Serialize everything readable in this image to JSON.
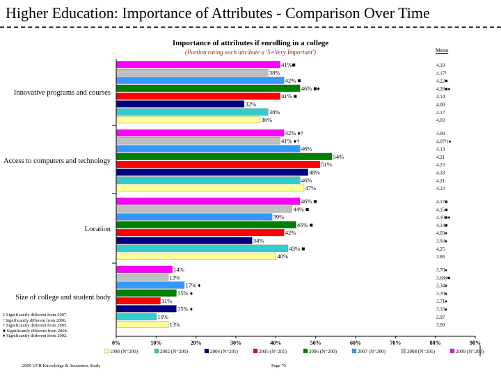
{
  "slide": {
    "title": "Higher Education:  Importance of Attributes - Comparison Over Time"
  },
  "chart": {
    "title": "Importance of attributes if enrolling in a college",
    "subtitle": "(Portion rating each attribute a '5=Very Important')",
    "mean_header": "Mean"
  },
  "footnotes": [
    "‡ Significantly different from 2007.",
    "¹ Significantly different from 2006.",
    "† Significantly different from 2005.",
    "■ Significantly different from 2004.",
    "♦ Significantly different from 2002."
  ],
  "footer": {
    "left": "2009 UCR Knowledge & Awareness Study",
    "center": "Page 70"
  },
  "chart_data": {
    "type": "bar",
    "orientation": "horizontal",
    "title": "Importance of attributes if enrolling in a college",
    "subtitle": "(Portion rating each attribute a '5=Very Important')",
    "xlim": [
      0,
      90
    ],
    "x_ticks": [
      "0%",
      "10%",
      "20%",
      "30%",
      "40%",
      "50%",
      "60%",
      "70%",
      "80%",
      "90%"
    ],
    "legend_position": "bottom",
    "series": [
      {
        "name": "2009 (N=202)",
        "color": "#ff00ff"
      },
      {
        "name": "2008 (N=201)",
        "color": "#c0c0c0"
      },
      {
        "name": "2007 (N=200)",
        "color": "#3399ff"
      },
      {
        "name": "2006 (N=200)",
        "color": "#008000"
      },
      {
        "name": "2005 (N=201)",
        "color": "#ff0000"
      },
      {
        "name": "2004 (N=201)",
        "color": "#000080"
      },
      {
        "name": "2002 (N=200)",
        "color": "#33cccc"
      },
      {
        "name": "1998 (N=200)",
        "color": "#ffff99"
      }
    ],
    "legend_order": [
      "1998 (N=200)",
      "2002 (N=200)",
      "2004 (N=201)",
      "2005 (N=201)",
      "2006 (N=200)",
      "2007 (N=200)",
      "2008 (N=201)",
      "2009 (N=202)"
    ],
    "categories": [
      {
        "name": "Innovative programs and courses",
        "values": [
          41,
          38,
          42,
          46,
          41,
          32,
          38,
          36
        ],
        "labels": [
          "41%■",
          "38%",
          "42% ■",
          "46% ■♦",
          "41% ■",
          "32%",
          "38%",
          "36%"
        ],
        "means": [
          "4.19",
          "4.17¹",
          "4.22■",
          "4.28■♦",
          "4.14",
          "4.08",
          "4.17",
          "4.03"
        ]
      },
      {
        "name": "Access to computers and technology",
        "values": [
          42,
          41,
          46,
          54,
          51,
          48,
          46,
          47
        ],
        "labels": [
          "42% ♦†",
          "41% ♦†",
          "46%",
          "54%",
          "51%",
          "48%",
          "46%",
          "47%"
        ],
        "means": [
          "4.09",
          "4.07¹†♦",
          "4.13",
          "4.21",
          "4.23",
          "4.18",
          "4.21",
          "4.23"
        ]
      },
      {
        "name": "Location",
        "values": [
          46,
          44,
          39,
          45,
          42,
          34,
          43,
          40
        ],
        "labels": [
          "46% ■",
          "44% ■",
          "39%",
          "45% ■",
          "42%",
          "34%",
          "43% ■",
          "40%"
        ],
        "means": [
          "4.17■",
          "4.15■",
          "4.10■♦",
          "4.14■",
          "4.03♦",
          "3.93♦",
          "4.25",
          "3.88"
        ]
      },
      {
        "name": "Size of college and student body",
        "values": [
          14,
          13,
          17,
          15,
          11,
          15,
          10,
          13
        ],
        "labels": [
          "14%",
          "13%",
          "17% ♦",
          "15% ♦",
          "11%",
          "15% ♦",
          "10%",
          "13%"
        ],
        "means": [
          "3.70♦",
          "3.68‡■",
          "3.34♦",
          "3.70♦",
          "3.71♦",
          "3.33♦",
          "2.97",
          "3.09"
        ]
      }
    ]
  }
}
